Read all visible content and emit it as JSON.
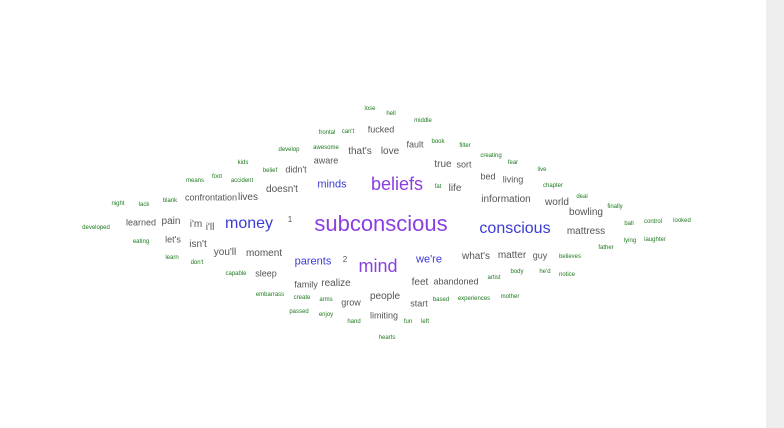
{
  "colors": {
    "background": "#ffffff",
    "scrollbar": "#eeeeee",
    "big": "#8a3fe0",
    "blue": "#3b3bd6",
    "grey": "#555555",
    "green": "#1f7a1f"
  },
  "words": [
    {
      "text": "subconscious",
      "tier": "big"
    },
    {
      "text": "beliefs",
      "tier": "big"
    },
    {
      "text": "mind",
      "tier": "big"
    },
    {
      "text": "money",
      "tier": "blue"
    },
    {
      "text": "conscious",
      "tier": "blue"
    },
    {
      "text": "minds",
      "tier": "mid"
    },
    {
      "text": "parents",
      "tier": "mid"
    },
    {
      "text": "we're",
      "tier": "mid"
    },
    {
      "text": "information",
      "tier": "grey"
    },
    {
      "text": "life",
      "tier": "grey"
    },
    {
      "text": "what's",
      "tier": "grey"
    },
    {
      "text": "doesn't",
      "tier": "grey"
    },
    {
      "text": "love",
      "tier": "grey"
    },
    {
      "text": "that's",
      "tier": "grey"
    },
    {
      "text": "world",
      "tier": "grey"
    },
    {
      "text": "mattress",
      "tier": "grey"
    },
    {
      "text": "matter",
      "tier": "grey"
    },
    {
      "text": "people",
      "tier": "grey"
    },
    {
      "text": "moment",
      "tier": "grey"
    },
    {
      "text": "true",
      "tier": "grey"
    },
    {
      "text": "i'm",
      "tier": "grey"
    },
    {
      "text": "i'll",
      "tier": "grey"
    },
    {
      "text": "you'll",
      "tier": "grey"
    },
    {
      "text": "realize",
      "tier": "grey"
    },
    {
      "text": "feet",
      "tier": "grey"
    },
    {
      "text": "pain",
      "tier": "grey"
    },
    {
      "text": "lives",
      "tier": "grey"
    },
    {
      "text": "bowling",
      "tier": "grey"
    },
    {
      "text": "isn't",
      "tier": "grey"
    },
    {
      "text": "sort",
      "tier": "grey"
    },
    {
      "text": "guy",
      "tier": "grey"
    },
    {
      "text": "limiting",
      "tier": "grey"
    },
    {
      "text": "start",
      "tier": "grey"
    },
    {
      "text": "fault",
      "tier": "grey"
    },
    {
      "text": "aware",
      "tier": "grey"
    },
    {
      "text": "fucked",
      "tier": "grey"
    },
    {
      "text": "grow",
      "tier": "grey"
    },
    {
      "text": "let's",
      "tier": "grey"
    },
    {
      "text": "sleep",
      "tier": "grey"
    },
    {
      "text": "family",
      "tier": "grey"
    },
    {
      "text": "abandoned",
      "tier": "grey"
    },
    {
      "text": "learned",
      "tier": "grey"
    },
    {
      "text": "bed",
      "tier": "grey"
    },
    {
      "text": "living",
      "tier": "grey"
    },
    {
      "text": "didn't",
      "tier": "grey"
    },
    {
      "text": "confrontation",
      "tier": "grey"
    },
    {
      "text": "1",
      "tier": "small"
    },
    {
      "text": "2",
      "tier": "small"
    },
    {
      "text": "lose",
      "tier": "green"
    },
    {
      "text": "hell",
      "tier": "green"
    },
    {
      "text": "middle",
      "tier": "green"
    },
    {
      "text": "frontal",
      "tier": "green"
    },
    {
      "text": "can't",
      "tier": "green"
    },
    {
      "text": "book",
      "tier": "green"
    },
    {
      "text": "filter",
      "tier": "green"
    },
    {
      "text": "develop",
      "tier": "green"
    },
    {
      "text": "awesome",
      "tier": "green"
    },
    {
      "text": "creating",
      "tier": "green"
    },
    {
      "text": "fear",
      "tier": "green"
    },
    {
      "text": "kids",
      "tier": "green"
    },
    {
      "text": "belief",
      "tier": "green"
    },
    {
      "text": "live",
      "tier": "green"
    },
    {
      "text": "foot",
      "tier": "green"
    },
    {
      "text": "means",
      "tier": "green"
    },
    {
      "text": "accident",
      "tier": "green"
    },
    {
      "text": "fat",
      "tier": "green"
    },
    {
      "text": "chapter",
      "tier": "green"
    },
    {
      "text": "deal",
      "tier": "green"
    },
    {
      "text": "blank",
      "tier": "green"
    },
    {
      "text": "night",
      "tier": "green"
    },
    {
      "text": "lack",
      "tier": "green"
    },
    {
      "text": "finally",
      "tier": "green"
    },
    {
      "text": "ball",
      "tier": "green"
    },
    {
      "text": "control",
      "tier": "green"
    },
    {
      "text": "looked",
      "tier": "green"
    },
    {
      "text": "developed",
      "tier": "green"
    },
    {
      "text": "eating",
      "tier": "green"
    },
    {
      "text": "lying",
      "tier": "green"
    },
    {
      "text": "laughter",
      "tier": "green"
    },
    {
      "text": "father",
      "tier": "green"
    },
    {
      "text": "learn",
      "tier": "green"
    },
    {
      "text": "don't",
      "tier": "green"
    },
    {
      "text": "believes",
      "tier": "green"
    },
    {
      "text": "body",
      "tier": "green"
    },
    {
      "text": "he'd",
      "tier": "green"
    },
    {
      "text": "notice",
      "tier": "green"
    },
    {
      "text": "capable",
      "tier": "green"
    },
    {
      "text": "artist",
      "tier": "green"
    },
    {
      "text": "embarrass",
      "tier": "green"
    },
    {
      "text": "create",
      "tier": "green"
    },
    {
      "text": "arms",
      "tier": "green"
    },
    {
      "text": "based",
      "tier": "green"
    },
    {
      "text": "experiences",
      "tier": "green"
    },
    {
      "text": "mother",
      "tier": "green"
    },
    {
      "text": "passed",
      "tier": "green"
    },
    {
      "text": "enjoy",
      "tier": "green"
    },
    {
      "text": "hand",
      "tier": "green"
    },
    {
      "text": "fun",
      "tier": "green"
    },
    {
      "text": "left",
      "tier": "green"
    },
    {
      "text": "hearts",
      "tier": "green"
    }
  ]
}
